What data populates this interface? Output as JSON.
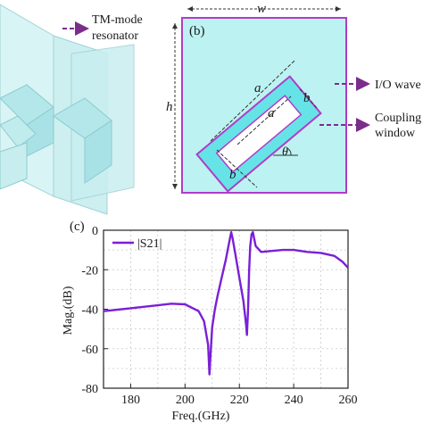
{
  "top_left_panel": {
    "callout_label_line1": "TM-mode",
    "callout_label_line2": "resonator"
  },
  "panel_b": {
    "panel_label": "(b)",
    "width_label": "w",
    "height_label": "h",
    "dim_a_outer": "a",
    "dim_a_inner": "a",
    "dim_b_outer": "b",
    "dim_b_inner": "b",
    "angle_label": "θ",
    "callout_io_label": "I/O wave",
    "callout_coupling_line1": "Coupling",
    "callout_coupling_line2": "window",
    "colors": {
      "outer_fill": "#bdf2f2",
      "outer_stroke": "#b03cc8",
      "ring_fill": "#66e3e6",
      "callout": "#7b2d8c"
    }
  },
  "chart_data": {
    "type": "line",
    "panel_label": "(c)",
    "title": "",
    "xlabel": "Freq.(GHz)",
    "ylabel": "Mag.(dB)",
    "xlim": [
      170,
      260
    ],
    "ylim": [
      -80,
      0
    ],
    "xticks": [
      180,
      200,
      220,
      240,
      260
    ],
    "yticks": [
      0,
      -20,
      -40,
      -60,
      -80
    ],
    "grid": true,
    "legend_position": "top-left",
    "series": [
      {
        "name": "|S21|",
        "color": "#7a1fd6",
        "x": [
          170,
          180,
          190,
          195,
          200,
          205,
          207,
          208.5,
          209,
          209.5,
          210,
          211,
          212,
          213.5,
          215,
          216,
          216.7,
          217,
          217.5,
          218.5,
          220,
          221.5,
          222.5,
          222.8,
          223.2,
          223.6,
          224,
          224.5,
          225,
          226,
          228,
          232,
          236,
          240,
          245,
          250,
          255,
          258,
          260
        ],
        "y": [
          -41,
          -39.5,
          -38,
          -37.2,
          -37.5,
          -41,
          -46,
          -58,
          -73,
          -60,
          -49,
          -40,
          -33,
          -24,
          -15,
          -8,
          -3,
          -1,
          -4,
          -12,
          -24,
          -36,
          -48,
          -53,
          -40,
          -20,
          -8,
          -2,
          -1,
          -8,
          -11,
          -10.5,
          -10,
          -10,
          -11,
          -11.5,
          -13,
          -16,
          -19
        ]
      }
    ]
  }
}
